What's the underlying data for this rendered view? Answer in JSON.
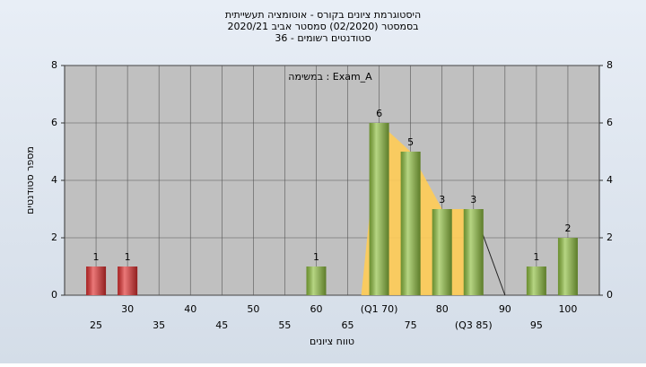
{
  "chart_data": {
    "type": "bar",
    "title": "היסטוגרמת ציונים בקורס - אוטומציה תעשייתית",
    "subtitle": "בסמסטר  (02/2020)  סמסטר אביב 2020/21",
    "subtitle2": "סטודנטים רשומים - 36",
    "annotation": "במשימה : Exam_A",
    "x_label": "טווח ציונים",
    "y_label": "מספר סטודנטים",
    "categories": [
      "25",
      "30",
      "35",
      "40",
      "45",
      "50",
      "55",
      "60",
      "65",
      "(Q1 70)",
      "75",
      "80",
      "(Q3 85)",
      "90",
      "95",
      "100"
    ],
    "values": [
      1,
      1,
      0,
      0,
      0,
      0,
      0,
      1,
      0,
      6,
      5,
      3,
      3,
      0,
      1,
      2
    ],
    "colors": [
      "#e03030",
      "#e03030",
      "#8fbf40",
      "#8fbf40",
      "#8fbf40",
      "#8fbf40",
      "#8fbf40",
      "#8fbf40",
      "#8fbf40",
      "#8fbf40",
      "#8fbf40",
      "#8fbf40",
      "#8fbf40",
      "#8fbf40",
      "#8fbf40",
      "#8fbf40"
    ],
    "area_color": "#ffcc55",
    "ylim": [
      0,
      8
    ],
    "yticks": [
      0,
      2,
      4,
      6,
      8
    ],
    "y2lim": [
      0,
      8
    ],
    "y2ticks": [
      0,
      2,
      4,
      6,
      8
    ],
    "grid": true
  }
}
